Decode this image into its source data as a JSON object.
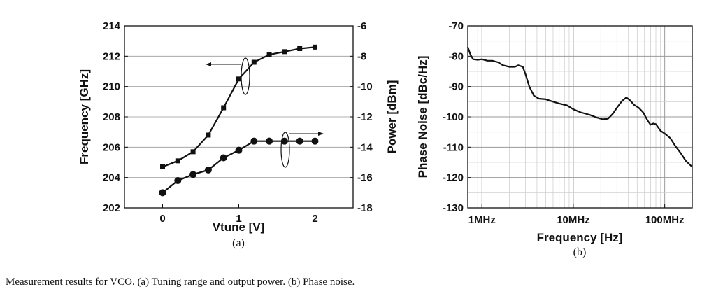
{
  "caption": "Measurement results for VCO. (a) Tuning range and output power. (b) Phase noise.",
  "colors": {
    "line": "#111111",
    "grid": "#9a9a9a",
    "grid_minor": "#d0d0d0"
  },
  "chart_data": [
    {
      "type": "line",
      "panel_label": "(a)",
      "xlabel": "Vtune [V]",
      "ylabel": "Frequency [GHz]",
      "y2label": "Power [dBm]",
      "xlim": [
        -0.5,
        2.5
      ],
      "ylim": [
        202,
        214
      ],
      "y2lim": [
        -18,
        -6
      ],
      "xticks": [
        "0",
        "1",
        "2"
      ],
      "yticks": [
        "202",
        "204",
        "206",
        "208",
        "210",
        "212",
        "214"
      ],
      "y2ticks": [
        "-18",
        "-16",
        "-14",
        "-12",
        "-10",
        "-8",
        "-6"
      ],
      "grid": "horizontal",
      "series": [
        {
          "axis": "left",
          "marker": "square",
          "x": [
            0,
            0.2,
            0.4,
            0.6,
            0.8,
            1.0,
            1.2,
            1.4,
            1.6,
            1.8,
            2.0
          ],
          "y": [
            204.7,
            205.1,
            205.7,
            206.8,
            208.6,
            210.5,
            211.6,
            212.1,
            212.3,
            212.5,
            212.6
          ]
        },
        {
          "axis": "right",
          "marker": "circle",
          "x": [
            0,
            0.2,
            0.4,
            0.6,
            0.8,
            1.0,
            1.2,
            1.4,
            1.6,
            1.8,
            2.0
          ],
          "y": [
            -17.0,
            -16.2,
            -15.8,
            -15.5,
            -14.7,
            -14.2,
            -13.6,
            -13.6,
            -13.6,
            -13.6,
            -13.6
          ]
        }
      ]
    },
    {
      "type": "line",
      "panel_label": "(b)",
      "xlabel": "Frequency [Hz]",
      "ylabel": "Phase Noise [dBc/Hz]",
      "xscale": "log",
      "xlim": [
        700000,
        200000000
      ],
      "ylim": [
        -130,
        -70
      ],
      "xtick_values": [
        1000000,
        10000000,
        100000000
      ],
      "xticks": [
        "1MHz",
        "10MHz",
        "100MHz"
      ],
      "yticks": [
        "-130",
        "-120",
        "-110",
        "-100",
        "-90",
        "-80",
        "-70"
      ],
      "grid": "both",
      "series": [
        {
          "x": [
            700000,
            750000,
            800000,
            900000,
            1000000,
            1150000,
            1300000,
            1500000,
            1700000,
            2000000,
            2300000,
            2500000,
            2800000,
            3000000,
            3300000,
            3700000,
            4200000,
            5000000,
            6000000,
            7000000,
            8500000,
            10000000,
            12000000,
            15000000,
            18000000,
            21000000,
            24000000,
            27000000,
            30000000,
            34000000,
            38000000,
            42000000,
            46000000,
            52000000,
            58000000,
            65000000,
            70000000,
            75000000,
            80000000,
            90000000,
            100000000,
            115000000,
            130000000,
            150000000,
            170000000,
            200000000
          ],
          "y": [
            -77,
            -79.5,
            -81,
            -81.2,
            -81,
            -81.5,
            -81.5,
            -82,
            -83,
            -83.5,
            -83.5,
            -83,
            -83.5,
            -86,
            -90,
            -93,
            -94,
            -94.2,
            -95,
            -95.6,
            -96.2,
            -97.5,
            -98.5,
            -99.3,
            -100.2,
            -100.8,
            -100.6,
            -99,
            -97,
            -94.8,
            -93.6,
            -94.6,
            -96,
            -97,
            -98.5,
            -101.2,
            -102.6,
            -102.2,
            -102.4,
            -104.6,
            -105.5,
            -107,
            -109.5,
            -112,
            -114.5,
            -116.5
          ]
        }
      ]
    }
  ]
}
